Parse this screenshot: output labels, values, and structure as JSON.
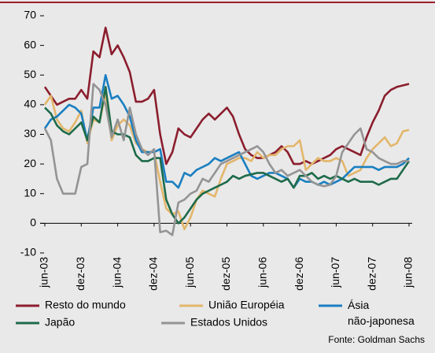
{
  "chart_data": {
    "type": "line",
    "categories": [
      "jun-03",
      null,
      null,
      null,
      null,
      null,
      "dez-03",
      null,
      null,
      null,
      null,
      null,
      "jun-04",
      null,
      null,
      null,
      null,
      null,
      "dez-04",
      null,
      null,
      null,
      null,
      null,
      "jun-05",
      null,
      null,
      null,
      null,
      null,
      "dez-05",
      null,
      null,
      null,
      null,
      null,
      "jun-06",
      null,
      null,
      null,
      null,
      null,
      "dez-06",
      null,
      null,
      null,
      null,
      null,
      "jun-07",
      null,
      null,
      null,
      null,
      null,
      "dez-07",
      null,
      null,
      null,
      null,
      null,
      "jun-08"
    ],
    "series": [
      {
        "name": "Resto do mundo",
        "color": "#8b1e2e",
        "values": [
          46,
          43,
          40,
          41,
          42,
          42,
          45,
          42,
          58,
          56,
          66,
          57,
          60,
          56,
          51,
          41,
          41,
          42,
          45,
          30,
          20,
          24,
          32,
          30,
          29,
          32,
          35,
          37,
          35,
          37,
          39,
          36,
          30,
          25,
          23,
          22,
          22,
          23,
          24,
          26,
          24,
          20,
          20,
          21,
          20,
          21,
          22,
          23,
          25,
          26,
          25,
          24,
          23,
          29,
          34,
          38,
          43,
          45,
          46,
          46.5,
          47
        ]
      },
      {
        "name": "União Européia",
        "color": "#e3b66b",
        "values": [
          40,
          43,
          35,
          32,
          31,
          34,
          38,
          27,
          35,
          34,
          44,
          28,
          33,
          35,
          33,
          27,
          25,
          24,
          24,
          14,
          5,
          3,
          4,
          -2,
          2,
          8,
          11,
          10,
          9,
          15,
          20,
          21,
          22,
          22,
          21,
          24,
          22,
          23,
          23,
          25,
          26,
          26,
          28,
          18,
          20,
          22,
          21,
          21,
          22,
          21,
          16,
          17,
          18,
          22,
          25,
          27,
          29,
          26,
          27,
          31,
          31.5
        ]
      },
      {
        "name": "Ásia não-japonesa",
        "color": "#1a7fc1",
        "values": [
          32,
          35,
          36,
          38,
          40,
          39,
          37,
          28,
          39,
          39,
          50,
          42,
          43,
          40,
          36,
          28,
          24,
          24,
          24,
          25,
          14,
          14,
          12,
          17,
          16,
          18,
          19,
          20,
          22,
          21,
          22,
          23,
          24,
          20,
          16,
          15,
          16,
          17,
          17,
          16,
          15,
          12,
          15,
          14,
          14,
          13,
          14,
          13,
          14,
          15,
          17,
          19,
          19,
          19,
          19,
          18,
          19,
          19,
          19,
          20,
          22
        ]
      },
      {
        "name": "Japão",
        "color": "#1e6b4a",
        "values": [
          39,
          37,
          33,
          31,
          30,
          32,
          34,
          28,
          36,
          34,
          46,
          31,
          30,
          30,
          29,
          23,
          21,
          21,
          22,
          22,
          8,
          3,
          0,
          2,
          5,
          8,
          10,
          11,
          12,
          13,
          14,
          16,
          15,
          16,
          16.5,
          17,
          17,
          16,
          15,
          14,
          15,
          12,
          16,
          16,
          17,
          15,
          16,
          15,
          16,
          15,
          14,
          15,
          14,
          14,
          14,
          13,
          14,
          15,
          15,
          18,
          21
        ]
      },
      {
        "name": "Estados Unidos",
        "color": "#949494",
        "values": [
          32,
          28,
          15,
          10,
          10,
          10,
          19,
          20,
          47,
          45,
          40,
          29,
          35,
          28,
          39,
          30,
          25,
          23,
          25,
          -3,
          -2.5,
          -4,
          7,
          8,
          10,
          11,
          15,
          14,
          17,
          20,
          21,
          22,
          23,
          24,
          25,
          26,
          24,
          20,
          17,
          18,
          16,
          17,
          18,
          16,
          14,
          13,
          12.5,
          13,
          16,
          24,
          27,
          30,
          32,
          25,
          24,
          22,
          21,
          20,
          20,
          21,
          21
        ]
      }
    ],
    "ylim": [
      -10,
      70
    ],
    "yticks": [
      -10,
      0,
      10,
      20,
      30,
      40,
      50,
      60,
      70
    ],
    "grid": false,
    "source": "Fonte: Goldman Sachs"
  }
}
